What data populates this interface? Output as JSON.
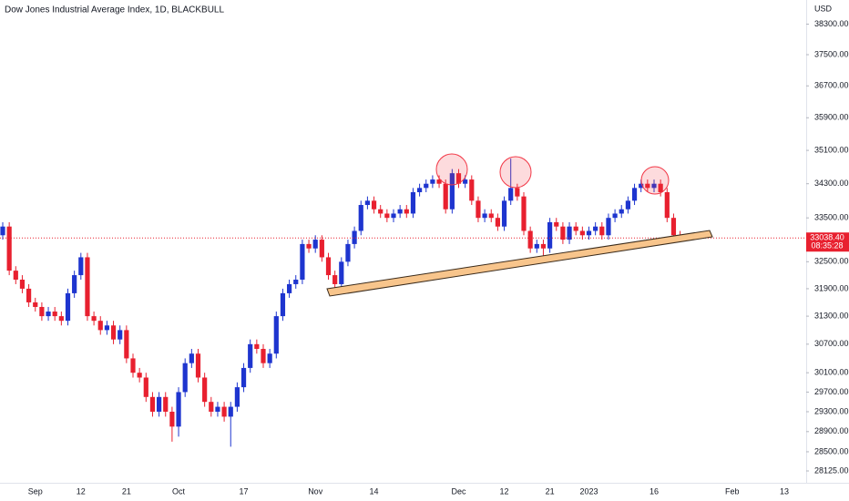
{
  "chart_data": {
    "type": "candlestick",
    "title": "Dow Jones Industrial Average Index, 1D, BLACKBULL",
    "currency": "USD",
    "log_scale": true,
    "grid": false,
    "up_color": "#1e35cf",
    "down_color": "#e8202f",
    "ylim": [
      27808,
      38944
    ],
    "yticks": [
      {
        "value": 38300,
        "label": "38300.00"
      },
      {
        "value": 37500,
        "label": "37500.00"
      },
      {
        "value": 36700,
        "label": "36700.00"
      },
      {
        "value": 35900,
        "label": "35900.00"
      },
      {
        "value": 35100,
        "label": "35100.00"
      },
      {
        "value": 34300,
        "label": "34300.00"
      },
      {
        "value": 33500,
        "label": "33500.00"
      },
      {
        "value": 32500,
        "label": "32500.00"
      },
      {
        "value": 31900,
        "label": "31900.00"
      },
      {
        "value": 31300,
        "label": "31300.00"
      },
      {
        "value": 30700,
        "label": "30700.00"
      },
      {
        "value": 30100,
        "label": "30100.00"
      },
      {
        "value": 29700,
        "label": "29700.00"
      },
      {
        "value": 29300,
        "label": "29300.00"
      },
      {
        "value": 28900,
        "label": "28900.00"
      },
      {
        "value": 28500,
        "label": "28500.00"
      },
      {
        "value": 28125,
        "label": "28125.00"
      }
    ],
    "price_label": {
      "value": 33038.4,
      "label": "33038.40"
    },
    "countdown": "08:35:28",
    "categories": [
      null,
      null,
      null,
      null,
      null,
      "Sep",
      null,
      null,
      null,
      null,
      null,
      null,
      "12",
      null,
      null,
      null,
      null,
      null,
      null,
      "21",
      null,
      null,
      null,
      null,
      null,
      null,
      null,
      "Oct",
      null,
      null,
      null,
      null,
      null,
      null,
      null,
      null,
      null,
      "17",
      null,
      null,
      null,
      null,
      null,
      null,
      null,
      null,
      null,
      null,
      "Nov",
      null,
      null,
      null,
      null,
      null,
      null,
      null,
      null,
      "14",
      null,
      null,
      null,
      null,
      null,
      null,
      null,
      null,
      null,
      null,
      null,
      null,
      "Dec",
      null,
      null,
      null,
      null,
      null,
      null,
      "12",
      null,
      null,
      null,
      null,
      null,
      null,
      "21",
      null,
      null,
      null,
      null,
      null,
      "2023",
      null,
      null,
      null,
      null,
      null,
      null,
      null,
      null,
      null,
      "16",
      null,
      null,
      null,
      null,
      null,
      null,
      null,
      null,
      null,
      null,
      null,
      "Feb",
      null,
      null,
      null,
      null,
      null,
      null,
      null,
      "13"
    ],
    "open": [
      33100,
      33300,
      32300,
      32100,
      31900,
      31600,
      31500,
      31300,
      31400,
      31300,
      31200,
      31800,
      32200,
      32600,
      31300,
      31200,
      31000,
      31100,
      30800,
      31000,
      30400,
      30100,
      30000,
      29600,
      29300,
      29600,
      29300,
      29000,
      29700,
      30300,
      30500,
      30000,
      29500,
      29300,
      29400,
      29200,
      29400,
      29800,
      30200,
      30700,
      30600,
      30300,
      30500,
      31300,
      31800,
      32000,
      32100,
      32900,
      32800,
      33000,
      32600,
      32200,
      32000,
      32500,
      32900,
      33200,
      33800,
      33900,
      33700,
      33600,
      33500,
      33600,
      33700,
      33600,
      34100,
      34200,
      34300,
      34400,
      34300,
      33700,
      34550,
      34300,
      34400,
      33900,
      33500,
      33600,
      33500,
      33300,
      33900,
      34200,
      34000,
      33200,
      32800,
      32900,
      32800,
      33400,
      33300,
      33000,
      33300,
      33200,
      33100,
      33200,
      33300,
      33100,
      33500,
      33600,
      33700,
      33900,
      34200,
      34300,
      34200,
      34300,
      34100,
      33500,
      33100,
      null,
      null,
      null,
      null,
      null,
      null,
      null,
      null,
      null,
      null,
      null,
      null,
      null,
      null,
      null,
      null
    ],
    "high": [
      33400,
      33400,
      32400,
      32200,
      32000,
      31700,
      31600,
      31500,
      31500,
      31400,
      31900,
      32300,
      32700,
      32700,
      31400,
      31300,
      31200,
      31200,
      31100,
      31100,
      30500,
      30200,
      30100,
      29700,
      29700,
      29700,
      29400,
      29800,
      30400,
      30600,
      30600,
      30100,
      29600,
      29500,
      29500,
      29500,
      29900,
      30300,
      30800,
      30800,
      30700,
      30600,
      31400,
      31900,
      32100,
      32200,
      33000,
      33000,
      33100,
      33100,
      32700,
      32300,
      32600,
      33000,
      33300,
      33900,
      34000,
      34000,
      33800,
      33700,
      33700,
      33800,
      33800,
      34200,
      34300,
      34400,
      34500,
      34500,
      34400,
      34650,
      34650,
      34500,
      34500,
      34000,
      33700,
      33700,
      33600,
      34000,
      34900,
      34300,
      34100,
      33300,
      33000,
      33000,
      33500,
      33500,
      33400,
      33400,
      33400,
      33300,
      33300,
      33400,
      33400,
      33600,
      33700,
      33800,
      34000,
      34300,
      34400,
      34400,
      34400,
      34400,
      34200,
      33600,
      33200,
      null,
      null,
      null,
      null,
      null,
      null,
      null,
      null,
      null,
      null,
      null,
      null,
      null,
      null,
      null,
      null
    ],
    "low": [
      33000,
      32200,
      32000,
      31800,
      31500,
      31400,
      31200,
      31200,
      31200,
      31100,
      31100,
      31700,
      32100,
      31200,
      31100,
      30900,
      30900,
      30700,
      30700,
      30300,
      30000,
      29900,
      29500,
      29200,
      29200,
      29200,
      28700,
      28800,
      29600,
      30200,
      29900,
      29400,
      29200,
      29200,
      29100,
      28600,
      29300,
      29700,
      30100,
      30500,
      30200,
      30200,
      30400,
      31200,
      31700,
      31900,
      32000,
      32700,
      32700,
      32500,
      32100,
      31900,
      31900,
      32400,
      32800,
      33100,
      33700,
      33600,
      33500,
      33400,
      33400,
      33500,
      33500,
      33500,
      34000,
      34100,
      34200,
      34200,
      33600,
      33600,
      34200,
      34200,
      33800,
      33400,
      33400,
      33400,
      33200,
      33200,
      33800,
      33900,
      33100,
      32700,
      32700,
      32600,
      32700,
      33200,
      32900,
      32900,
      33100,
      33000,
      33000,
      33100,
      33000,
      33000,
      33400,
      33500,
      33600,
      33800,
      34100,
      34100,
      34100,
      34000,
      33400,
      33000,
      32950,
      null,
      null,
      null,
      null,
      null,
      null,
      null,
      null,
      null,
      null,
      null,
      null,
      null,
      null,
      null,
      null
    ],
    "close": [
      33300,
      32300,
      32100,
      31900,
      31600,
      31500,
      31300,
      31400,
      31300,
      31200,
      31800,
      32200,
      32600,
      31300,
      31200,
      31000,
      31100,
      30800,
      31000,
      30400,
      30100,
      30000,
      29600,
      29300,
      29600,
      29300,
      29000,
      29700,
      30300,
      30500,
      30000,
      29500,
      29300,
      29400,
      29200,
      29400,
      29800,
      30200,
      30700,
      30600,
      30300,
      30500,
      31300,
      31800,
      32000,
      32100,
      32900,
      32800,
      33000,
      32600,
      32200,
      32000,
      32500,
      32900,
      33200,
      33800,
      33900,
      33700,
      33600,
      33500,
      33600,
      33700,
      33600,
      34100,
      34200,
      34300,
      34400,
      34300,
      33700,
      34550,
      34300,
      34400,
      33900,
      33500,
      33600,
      33500,
      33300,
      33900,
      34200,
      34000,
      33200,
      32800,
      32900,
      32800,
      33400,
      33300,
      33000,
      33300,
      33200,
      33100,
      33200,
      33300,
      33100,
      33500,
      33600,
      33700,
      33900,
      34200,
      34300,
      34200,
      34300,
      34100,
      33500,
      33100,
      33038.4,
      null,
      null,
      null,
      null,
      null,
      null,
      null,
      null,
      null,
      null,
      null,
      null,
      null,
      null,
      null,
      null
    ]
  }
}
